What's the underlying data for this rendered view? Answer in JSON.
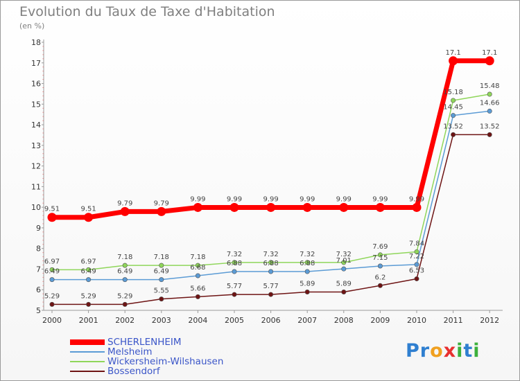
{
  "chart_data": {
    "type": "line",
    "title": "Evolution du Taux de Taxe d'Habitation",
    "subtitle": "(en %)",
    "xlabel": "",
    "ylabel": "",
    "categories": [
      "2000",
      "2001",
      "2002",
      "2003",
      "2004",
      "2005",
      "2006",
      "2007",
      "2008",
      "2009",
      "2010",
      "2011",
      "2012"
    ],
    "ylim": [
      5,
      18
    ],
    "yticks": [
      5,
      6,
      7,
      8,
      9,
      10,
      11,
      12,
      13,
      14,
      15,
      16,
      17,
      18
    ],
    "grid": false,
    "legend_position": "bottom-left",
    "series": [
      {
        "name": "SCHERLENHEIM",
        "color": "#ff0000",
        "values": [
          9.51,
          9.51,
          9.79,
          9.79,
          9.99,
          9.99,
          9.99,
          9.99,
          9.99,
          9.99,
          9.99,
          17.1,
          17.1
        ],
        "labels": [
          "9.51",
          "9.51",
          "9.79",
          "9.79",
          "9.99",
          "9.99",
          "9.99",
          "9.99",
          "9.99",
          "9.99",
          "9.99",
          "17.1",
          "17.1"
        ]
      },
      {
        "name": "Melsheim",
        "color": "#5b9bd5",
        "values": [
          6.49,
          6.49,
          6.49,
          6.49,
          6.68,
          6.88,
          6.88,
          6.88,
          7.01,
          7.15,
          7.22,
          14.45,
          14.66
        ],
        "labels": [
          "6.49",
          "6.49",
          "6.49",
          "6.49",
          "6.68",
          "6.88",
          "6.88",
          "6.88",
          "7.01",
          "7.15",
          "7.22",
          "14.45",
          "14.66"
        ]
      },
      {
        "name": "Wickersheim-Wilshausen",
        "color": "#8fd65a",
        "values": [
          6.97,
          6.97,
          7.18,
          7.18,
          7.18,
          7.32,
          7.32,
          7.32,
          7.32,
          7.69,
          7.84,
          15.18,
          15.48
        ],
        "labels": [
          "6.97",
          "6.97",
          "7.18",
          "7.18",
          "7.18",
          "7.32",
          "7.32",
          "7.32",
          "7.32",
          "7.69",
          "7.84",
          "15.18",
          "15.48"
        ]
      },
      {
        "name": "Bossendorf",
        "color": "#6e1414",
        "values": [
          5.29,
          5.29,
          5.29,
          5.55,
          5.66,
          5.77,
          5.77,
          5.89,
          5.89,
          6.2,
          6.53,
          13.52,
          13.52
        ],
        "labels": [
          "5.29",
          "5.29",
          "5.29",
          "5.55",
          "5.66",
          "5.77",
          "5.77",
          "5.89",
          "5.89",
          "6.2",
          "6.53",
          "13.52",
          "13.52"
        ]
      }
    ]
  },
  "logo": {
    "letters": [
      "P",
      "r",
      "o",
      "x",
      "i",
      "t",
      "i"
    ],
    "colors": [
      "#2f7fd0",
      "#2f7fd0",
      "#f0a020",
      "#e83030",
      "#3cb03c",
      "#2f7fd0",
      "#3cb03c"
    ]
  }
}
